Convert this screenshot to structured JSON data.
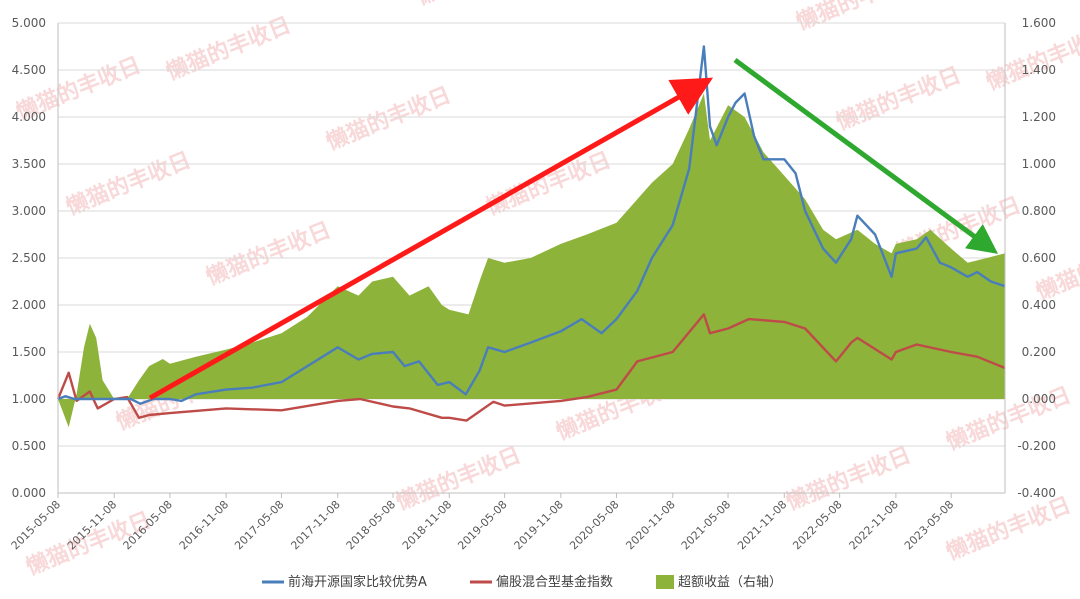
{
  "colors": {
    "fund": "#4a7ebb",
    "index": "#be4b48",
    "excess": "#8db33a",
    "up_arrow": "#ff1a1a",
    "down_arrow": "#2ea82e",
    "grid": "#d9d9d9",
    "axis": "#bfbfbf"
  },
  "watermark": "懒猫的丰收日",
  "chart_data": {
    "type": "line",
    "left_axis": {
      "min": 0,
      "max": 5,
      "step": 0.5,
      "ticks": [
        "0.000",
        "0.500",
        "1.000",
        "1.500",
        "2.000",
        "2.500",
        "3.000",
        "3.500",
        "4.000",
        "4.500",
        "5.000"
      ]
    },
    "right_axis": {
      "min": -0.4,
      "max": 1.6,
      "step": 0.2,
      "ticks": [
        "-0.400",
        "-0.200",
        "0.000",
        "0.200",
        "0.400",
        "0.600",
        "0.800",
        "1.000",
        "1.200",
        "1.400",
        "1.600"
      ]
    },
    "x_ticks": [
      "2015-05-08",
      "2015-11-08",
      "2016-05-08",
      "2016-11-08",
      "2017-05-08",
      "2017-11-08",
      "2018-05-08",
      "2018-11-08",
      "2019-05-08",
      "2019-11-08",
      "2020-05-08",
      "2020-11-08",
      "2021-05-08",
      "2021-11-08",
      "2022-05-08",
      "2022-11-08",
      "2023-05-08"
    ],
    "x_range": [
      "2015-05-08",
      "2023-10-31"
    ],
    "grid": true,
    "legend_position": "bottom",
    "series": [
      {
        "name": "前海开源国家比较优势A",
        "axis": "left",
        "style": "line",
        "points": [
          [
            "2015-05-08",
            1.0
          ],
          [
            "2015-06-01",
            1.03
          ],
          [
            "2015-07-01",
            1.0
          ],
          [
            "2015-09-01",
            1.0
          ],
          [
            "2015-11-08",
            1.0
          ],
          [
            "2016-01-01",
            1.0
          ],
          [
            "2016-02-01",
            0.95
          ],
          [
            "2016-03-15",
            1.0
          ],
          [
            "2016-05-08",
            1.0
          ],
          [
            "2016-06-15",
            0.98
          ],
          [
            "2016-08-01",
            1.05
          ],
          [
            "2016-11-08",
            1.1
          ],
          [
            "2017-02-01",
            1.12
          ],
          [
            "2017-05-08",
            1.18
          ],
          [
            "2017-08-01",
            1.35
          ],
          [
            "2017-11-08",
            1.55
          ],
          [
            "2018-01-15",
            1.42
          ],
          [
            "2018-03-01",
            1.48
          ],
          [
            "2018-05-08",
            1.5
          ],
          [
            "2018-06-15",
            1.35
          ],
          [
            "2018-08-01",
            1.4
          ],
          [
            "2018-10-01",
            1.15
          ],
          [
            "2018-11-08",
            1.18
          ],
          [
            "2019-01-01",
            1.05
          ],
          [
            "2019-02-15",
            1.3
          ],
          [
            "2019-03-15",
            1.55
          ],
          [
            "2019-05-08",
            1.5
          ],
          [
            "2019-08-01",
            1.6
          ],
          [
            "2019-11-08",
            1.72
          ],
          [
            "2020-01-15",
            1.85
          ],
          [
            "2020-03-20",
            1.7
          ],
          [
            "2020-05-08",
            1.85
          ],
          [
            "2020-07-15",
            2.15
          ],
          [
            "2020-09-01",
            2.5
          ],
          [
            "2020-11-08",
            2.85
          ],
          [
            "2021-01-01",
            3.45
          ],
          [
            "2021-02-18",
            4.75
          ],
          [
            "2021-03-10",
            3.9
          ],
          [
            "2021-04-01",
            3.7
          ],
          [
            "2021-05-08",
            4.0
          ],
          [
            "2021-06-01",
            4.15
          ],
          [
            "2021-07-01",
            4.25
          ],
          [
            "2021-08-01",
            3.8
          ],
          [
            "2021-09-01",
            3.55
          ],
          [
            "2021-11-08",
            3.55
          ],
          [
            "2021-12-15",
            3.4
          ],
          [
            "2022-01-15",
            3.0
          ],
          [
            "2022-03-15",
            2.6
          ],
          [
            "2022-04-26",
            2.45
          ],
          [
            "2022-06-15",
            2.7
          ],
          [
            "2022-07-05",
            2.95
          ],
          [
            "2022-09-01",
            2.75
          ],
          [
            "2022-10-25",
            2.3
          ],
          [
            "2022-11-08",
            2.55
          ],
          [
            "2023-01-15",
            2.6
          ],
          [
            "2023-02-15",
            2.72
          ],
          [
            "2023-04-01",
            2.45
          ],
          [
            "2023-05-08",
            2.4
          ],
          [
            "2023-07-01",
            2.3
          ],
          [
            "2023-08-01",
            2.35
          ],
          [
            "2023-09-15",
            2.25
          ],
          [
            "2023-10-31",
            2.2
          ]
        ]
      },
      {
        "name": "偏股混合型基金指数",
        "axis": "left",
        "style": "line",
        "points": [
          [
            "2015-05-08",
            1.0
          ],
          [
            "2015-06-12",
            1.28
          ],
          [
            "2015-07-08",
            0.98
          ],
          [
            "2015-08-20",
            1.08
          ],
          [
            "2015-09-15",
            0.9
          ],
          [
            "2015-11-08",
            1.0
          ],
          [
            "2015-12-20",
            1.02
          ],
          [
            "2016-01-28",
            0.8
          ],
          [
            "2016-03-01",
            0.83
          ],
          [
            "2016-05-08",
            0.85
          ],
          [
            "2016-11-08",
            0.9
          ],
          [
            "2017-05-08",
            0.88
          ],
          [
            "2017-11-08",
            0.98
          ],
          [
            "2018-01-20",
            1.0
          ],
          [
            "2018-05-08",
            0.92
          ],
          [
            "2018-07-01",
            0.9
          ],
          [
            "2018-10-15",
            0.8
          ],
          [
            "2018-11-08",
            0.8
          ],
          [
            "2019-01-03",
            0.77
          ],
          [
            "2019-04-01",
            0.97
          ],
          [
            "2019-05-08",
            0.93
          ],
          [
            "2019-11-08",
            0.98
          ],
          [
            "2020-02-01",
            1.02
          ],
          [
            "2020-05-08",
            1.1
          ],
          [
            "2020-07-15",
            1.4
          ],
          [
            "2020-11-08",
            1.5
          ],
          [
            "2021-02-18",
            1.9
          ],
          [
            "2021-03-10",
            1.7
          ],
          [
            "2021-05-08",
            1.75
          ],
          [
            "2021-07-15",
            1.85
          ],
          [
            "2021-11-08",
            1.82
          ],
          [
            "2022-01-15",
            1.75
          ],
          [
            "2022-04-26",
            1.4
          ],
          [
            "2022-06-15",
            1.6
          ],
          [
            "2022-07-05",
            1.65
          ],
          [
            "2022-10-25",
            1.42
          ],
          [
            "2022-11-08",
            1.5
          ],
          [
            "2023-01-15",
            1.58
          ],
          [
            "2023-05-08",
            1.5
          ],
          [
            "2023-08-01",
            1.45
          ],
          [
            "2023-10-31",
            1.33
          ]
        ]
      },
      {
        "name": "超额收益（右轴）",
        "axis": "right",
        "style": "area",
        "points": [
          [
            "2015-05-08",
            0.0
          ],
          [
            "2015-06-12",
            -0.12
          ],
          [
            "2015-07-08",
            0.02
          ],
          [
            "2015-08-01",
            0.22
          ],
          [
            "2015-08-20",
            0.32
          ],
          [
            "2015-09-10",
            0.26
          ],
          [
            "2015-10-01",
            0.08
          ],
          [
            "2015-11-08",
            0.0
          ],
          [
            "2015-12-20",
            0.0
          ],
          [
            "2016-01-28",
            0.08
          ],
          [
            "2016-03-01",
            0.14
          ],
          [
            "2016-04-15",
            0.17
          ],
          [
            "2016-05-08",
            0.15
          ],
          [
            "2016-08-01",
            0.18
          ],
          [
            "2016-11-08",
            0.21
          ],
          [
            "2017-02-01",
            0.24
          ],
          [
            "2017-05-08",
            0.28
          ],
          [
            "2017-08-01",
            0.35
          ],
          [
            "2017-11-08",
            0.48
          ],
          [
            "2018-01-15",
            0.44
          ],
          [
            "2018-03-01",
            0.5
          ],
          [
            "2018-05-08",
            0.52
          ],
          [
            "2018-07-01",
            0.44
          ],
          [
            "2018-09-01",
            0.48
          ],
          [
            "2018-10-15",
            0.4
          ],
          [
            "2018-11-08",
            0.38
          ],
          [
            "2019-01-10",
            0.36
          ],
          [
            "2019-02-20",
            0.52
          ],
          [
            "2019-03-15",
            0.6
          ],
          [
            "2019-05-08",
            0.58
          ],
          [
            "2019-08-01",
            0.6
          ],
          [
            "2019-11-08",
            0.66
          ],
          [
            "2020-02-01",
            0.7
          ],
          [
            "2020-05-08",
            0.75
          ],
          [
            "2020-07-15",
            0.85
          ],
          [
            "2020-09-01",
            0.92
          ],
          [
            "2020-11-08",
            1.0
          ],
          [
            "2021-01-01",
            1.15
          ],
          [
            "2021-02-18",
            1.3
          ],
          [
            "2021-03-10",
            1.1
          ],
          [
            "2021-05-08",
            1.25
          ],
          [
            "2021-07-01",
            1.2
          ],
          [
            "2021-09-01",
            1.05
          ],
          [
            "2021-11-08",
            0.95
          ],
          [
            "2022-01-15",
            0.85
          ],
          [
            "2022-03-15",
            0.72
          ],
          [
            "2022-04-26",
            0.68
          ],
          [
            "2022-07-05",
            0.72
          ],
          [
            "2022-09-01",
            0.66
          ],
          [
            "2022-10-25",
            0.62
          ],
          [
            "2022-11-08",
            0.66
          ],
          [
            "2023-01-15",
            0.68
          ],
          [
            "2023-03-01",
            0.72
          ],
          [
            "2023-05-08",
            0.64
          ],
          [
            "2023-07-01",
            0.58
          ],
          [
            "2023-09-01",
            0.6
          ],
          [
            "2023-10-31",
            0.62
          ]
        ]
      }
    ]
  }
}
